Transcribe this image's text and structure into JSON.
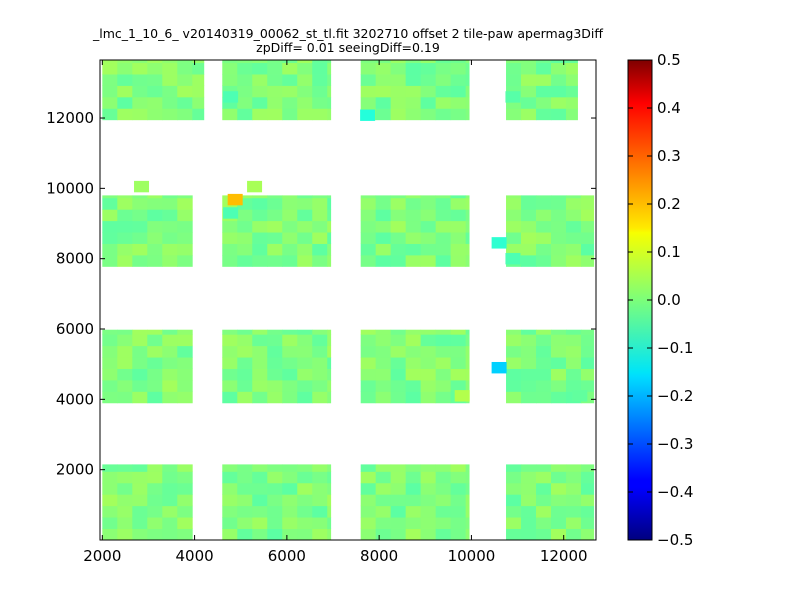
{
  "chart_data": {
    "type": "heatmap",
    "title_line1": "_lmc_1_10_6_ v20140319_00062_st_tl.fit 3202710 offset 2 tile-paw apermag3Diff",
    "title_line2": "zpDiff= 0.01 seeingDiff=0.19",
    "xlabel": "",
    "ylabel": "",
    "xlim": [
      1950,
      12700
    ],
    "ylim": [
      0,
      13650
    ],
    "x_ticks": [
      {
        "value": 2000,
        "label": "2000"
      },
      {
        "value": 4000,
        "label": "4000"
      },
      {
        "value": 6000,
        "label": "6000"
      },
      {
        "value": 8000,
        "label": "8000"
      },
      {
        "value": 10000,
        "label": "10000"
      },
      {
        "value": 12000,
        "label": "12000"
      }
    ],
    "y_ticks": [
      {
        "value": 2000,
        "label": "2000"
      },
      {
        "value": 4000,
        "label": "4000"
      },
      {
        "value": 6000,
        "label": "6000"
      },
      {
        "value": 8000,
        "label": "8000"
      },
      {
        "value": 10000,
        "label": "10000"
      },
      {
        "value": 12000,
        "label": "12000"
      }
    ],
    "colorbar": {
      "colormap": "jet",
      "vmin": -0.5,
      "vmax": 0.5,
      "ticks": [
        {
          "value": 0.5,
          "label": "0.5"
        },
        {
          "value": 0.4,
          "label": "0.4"
        },
        {
          "value": 0.3,
          "label": "0.3"
        },
        {
          "value": 0.2,
          "label": "0.2"
        },
        {
          "value": 0.1,
          "label": "0.1"
        },
        {
          "value": 0.0,
          "label": "0.0"
        },
        {
          "value": -0.1,
          "label": "−0.1"
        },
        {
          "value": -0.2,
          "label": "−0.2"
        },
        {
          "value": -0.3,
          "label": "−0.3"
        },
        {
          "value": -0.4,
          "label": "−0.4"
        },
        {
          "value": -0.5,
          "label": "−0.5"
        }
      ]
    },
    "cell_size": 325,
    "cell_value_base": 0.0,
    "regions_note": "",
    "regions": [
      {
        "x0": 2000,
        "x1": 3950,
        "y0": 0,
        "y1": 2150
      },
      {
        "x0": 4600,
        "x1": 6950,
        "y0": 0,
        "y1": 2150
      },
      {
        "x0": 7600,
        "x1": 9950,
        "y0": 0,
        "y1": 2150
      },
      {
        "x0": 10750,
        "x1": 12650,
        "y0": 0,
        "y1": 2150
      },
      {
        "x0": 2000,
        "x1": 3950,
        "y0": 3900,
        "y1": 5980
      },
      {
        "x0": 4600,
        "x1": 6950,
        "y0": 3900,
        "y1": 5980
      },
      {
        "x0": 7600,
        "x1": 9950,
        "y0": 3900,
        "y1": 5980
      },
      {
        "x0": 10750,
        "x1": 12650,
        "y0": 3900,
        "y1": 5980
      },
      {
        "x0": 2000,
        "x1": 3950,
        "y0": 7780,
        "y1": 9800
      },
      {
        "x0": 4600,
        "x1": 6950,
        "y0": 7780,
        "y1": 9800
      },
      {
        "x0": 7600,
        "x1": 9950,
        "y0": 7780,
        "y1": 9800
      },
      {
        "x0": 10750,
        "x1": 12650,
        "y0": 7780,
        "y1": 9800
      },
      {
        "x0": 2000,
        "x1": 4200,
        "y0": 11950,
        "y1": 13650
      },
      {
        "x0": 4600,
        "x1": 6950,
        "y0": 11950,
        "y1": 13650
      },
      {
        "x0": 7600,
        "x1": 9950,
        "y0": 11950,
        "y1": 13650
      },
      {
        "x0": 10750,
        "x1": 12300,
        "y0": 11950,
        "y1": 13650
      }
    ],
    "outlier_cells": [
      {
        "x": 4880,
        "y": 9680,
        "value": 0.19
      },
      {
        "x": 10600,
        "y": 4900,
        "value": -0.17
      },
      {
        "x": 10600,
        "y": 8450,
        "value": -0.08
      },
      {
        "x": 7750,
        "y": 12080,
        "value": -0.09
      },
      {
        "x": 4780,
        "y": 12600,
        "value": -0.05
      },
      {
        "x": 4780,
        "y": 9300,
        "value": -0.05
      },
      {
        "x": 10900,
        "y": 8000,
        "value": -0.05
      },
      {
        "x": 10900,
        "y": 12600,
        "value": -0.04
      },
      {
        "x": 2850,
        "y": 10050,
        "value": 0.03
      },
      {
        "x": 5300,
        "y": 10050,
        "value": 0.04
      },
      {
        "x": 9800,
        "y": 4100,
        "value": 0.05
      },
      {
        "x": 12350,
        "y": 4100,
        "value": -0.03
      }
    ]
  }
}
